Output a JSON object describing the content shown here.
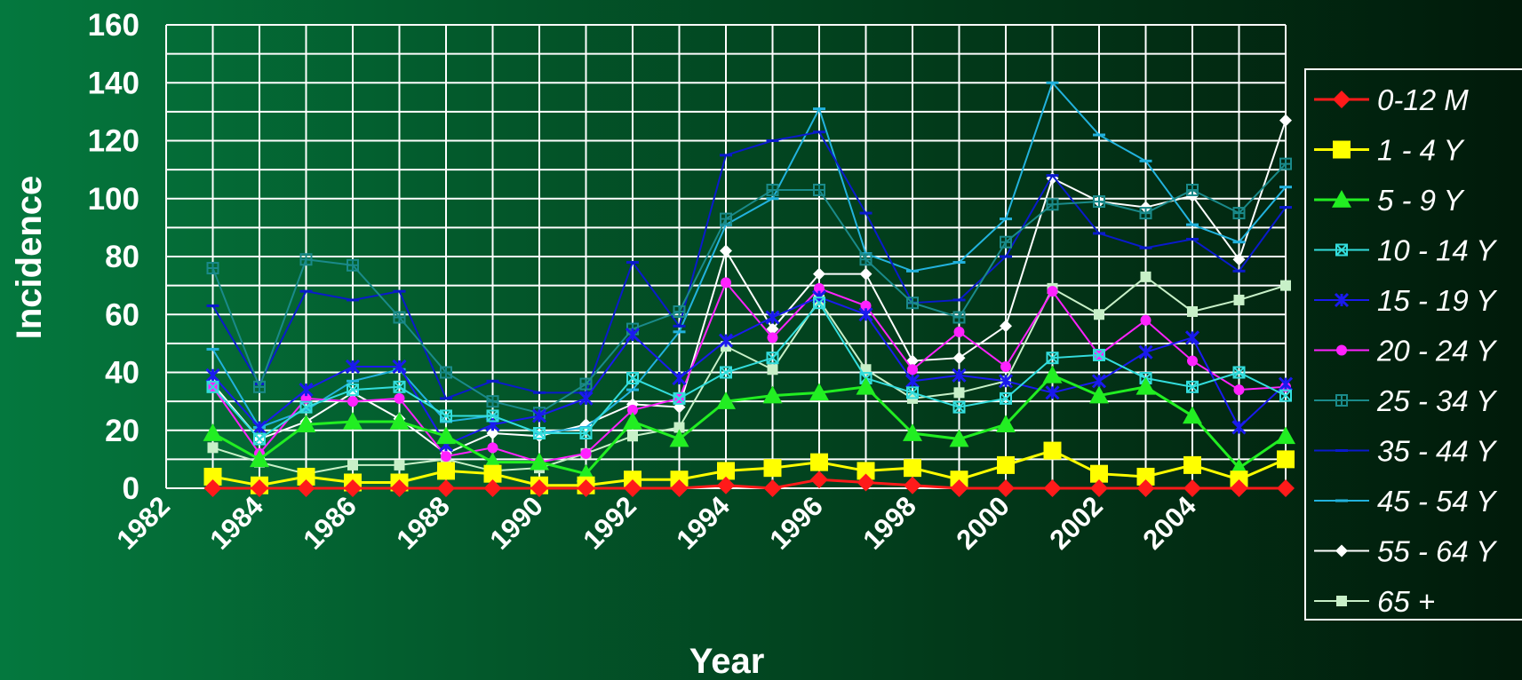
{
  "chart_data": {
    "type": "line",
    "xlabel": "Year",
    "ylabel": "Incidence",
    "ylim": [
      0,
      160
    ],
    "yticks": [
      "0",
      "20",
      "40",
      "60",
      "80",
      "100",
      "120",
      "140",
      "160"
    ],
    "xlim": [
      1982,
      2006
    ],
    "xticks": [
      "1982",
      "1984",
      "1986",
      "1988",
      "1990",
      "1992",
      "1994",
      "1996",
      "1998",
      "2000",
      "2002",
      "2004"
    ],
    "x": [
      1983,
      1984,
      1985,
      1986,
      1987,
      1988,
      1989,
      1990,
      1991,
      1992,
      1993,
      1994,
      1995,
      1996,
      1997,
      1998,
      1999,
      2000,
      2001,
      2002,
      2003,
      2004,
      2005,
      2006
    ],
    "grid": true,
    "legend_position": "right",
    "series": [
      {
        "name": "0-12 M",
        "color": "#ff1a1a",
        "marker": "diamond-large",
        "values": [
          0,
          0,
          0,
          0,
          0,
          0,
          0,
          0,
          0,
          0,
          0,
          1,
          0,
          3,
          2,
          1,
          0,
          0,
          0,
          0,
          0,
          0,
          0,
          0
        ]
      },
      {
        "name": "1 - 4 Y",
        "color": "#ffff00",
        "marker": "square-large",
        "values": [
          4,
          1,
          4,
          2,
          2,
          6,
          5,
          1,
          1,
          3,
          3,
          6,
          7,
          9,
          6,
          7,
          3,
          8,
          13,
          5,
          4,
          8,
          3,
          10
        ]
      },
      {
        "name": "5 - 9 Y",
        "color": "#22ee22",
        "marker": "triangle-large",
        "values": [
          19,
          10,
          22,
          23,
          23,
          18,
          9,
          9,
          5,
          23,
          17,
          30,
          32,
          33,
          35,
          19,
          17,
          22,
          39,
          32,
          35,
          25,
          7,
          18
        ]
      },
      {
        "name": "10 - 14 Y",
        "color": "#33dddd",
        "marker": "x-square",
        "values": [
          35,
          17,
          28,
          34,
          35,
          25,
          25,
          19,
          19,
          38,
          31,
          40,
          45,
          64,
          38,
          33,
          28,
          31,
          45,
          46,
          38,
          35,
          40,
          32
        ]
      },
      {
        "name": "15 - 19 Y",
        "color": "#1a1aee",
        "marker": "star",
        "values": [
          39,
          21,
          34,
          42,
          42,
          15,
          22,
          25,
          31,
          53,
          38,
          51,
          59,
          66,
          60,
          37,
          39,
          37,
          33,
          37,
          47,
          52,
          21,
          36
        ]
      },
      {
        "name": "20 - 24 Y",
        "color": "#ff22ff",
        "marker": "circle",
        "values": [
          35,
          12,
          31,
          30,
          31,
          11,
          14,
          9,
          12,
          27,
          31,
          71,
          52,
          69,
          63,
          41,
          54,
          42,
          68,
          46,
          58,
          44,
          34,
          35
        ]
      },
      {
        "name": "25 - 34 Y",
        "color": "#1a8a8a",
        "marker": "plus-square",
        "values": [
          76,
          35,
          79,
          77,
          59,
          40,
          30,
          26,
          36,
          55,
          61,
          93,
          103,
          103,
          79,
          64,
          59,
          85,
          98,
          99,
          95,
          103,
          95,
          112
        ]
      },
      {
        "name": "35 - 44 Y",
        "color": "#0a1acc",
        "marker": "dash",
        "values": [
          63,
          36,
          68,
          65,
          68,
          31,
          37,
          33,
          33,
          78,
          56,
          115,
          120,
          123,
          95,
          64,
          65,
          80,
          108,
          88,
          83,
          86,
          75,
          97
        ]
      },
      {
        "name": "45 - 54 Y",
        "color": "#22b2dd",
        "marker": "dash",
        "values": [
          48,
          21,
          27,
          37,
          41,
          23,
          25,
          19,
          21,
          34,
          54,
          91,
          100,
          131,
          81,
          75,
          78,
          93,
          140,
          122,
          113,
          91,
          85,
          104
        ]
      },
      {
        "name": "55 - 64 Y",
        "color": "#ffffff",
        "marker": "diamond-small",
        "values": [
          36,
          17,
          23,
          33,
          24,
          12,
          19,
          18,
          22,
          29,
          28,
          82,
          55,
          74,
          74,
          44,
          45,
          56,
          107,
          99,
          97,
          101,
          79,
          127
        ]
      },
      {
        "name": "65 +",
        "color": "#c8f0c8",
        "marker": "square-small",
        "values": [
          14,
          9,
          5,
          8,
          8,
          10,
          6,
          7,
          12,
          18,
          21,
          49,
          41,
          65,
          41,
          31,
          33,
          37,
          69,
          60,
          73,
          61,
          65,
          70
        ]
      }
    ]
  }
}
